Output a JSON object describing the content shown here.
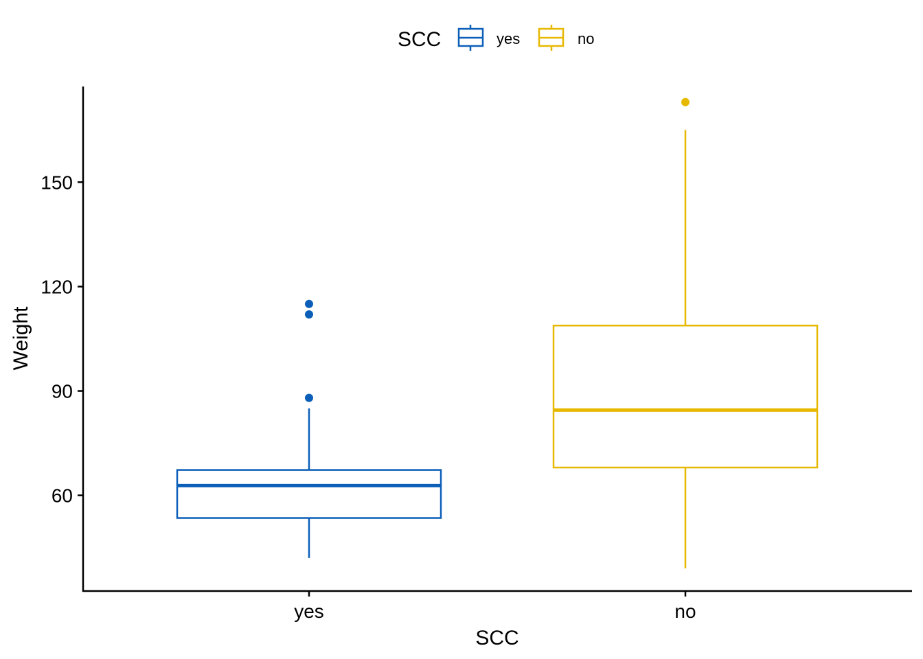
{
  "chart_data": {
    "type": "box",
    "xlabel": "SCC",
    "ylabel": "Weight",
    "ylim": [
      32.5,
      177.5
    ],
    "yticks": [
      60,
      90,
      120,
      150
    ],
    "categories": [
      "yes",
      "no"
    ],
    "legend": {
      "title": "SCC",
      "placement": "top",
      "entries": [
        "yes",
        "no"
      ]
    },
    "grid": false,
    "series": [
      {
        "name": "yes",
        "color": "#0C5FB8",
        "whisker_low": 42,
        "q1": 53.5,
        "median": 62.8,
        "q3": 67.3,
        "whisker_high": 85,
        "outliers": [
          88,
          112,
          115
        ]
      },
      {
        "name": "no",
        "color": "#E7B800",
        "whisker_low": 39,
        "q1": 68,
        "median": 84.5,
        "q3": 108.8,
        "whisker_high": 165,
        "outliers": [
          173
        ]
      }
    ]
  }
}
